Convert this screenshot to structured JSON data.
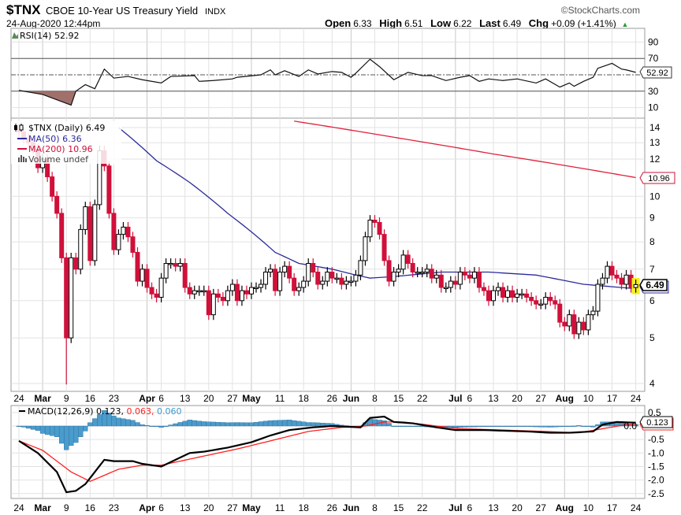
{
  "header": {
    "symbol": "$TNX",
    "name": "CBOE 10-Year US Treasury Yield",
    "exchange": "INDX",
    "datetime": "24-Aug-2020 12:44pm",
    "copyright": "©StockCharts.com",
    "open_label": "Open",
    "open": "6.33",
    "high_label": "High",
    "high": "6.51",
    "low_label": "Low",
    "low": "6.22",
    "last_label": "Last",
    "last": "6.49",
    "chg_label": "Chg",
    "chg": "+0.09 (+1.41%)",
    "chg_arrow": "▲"
  },
  "colors": {
    "up": "#000000",
    "down": "#d0103a",
    "ma50": "#2a2a9a",
    "ma200": "#e0203a",
    "rsi_fill": "#a0706a",
    "hist": "#4a9ccc",
    "signal": "#ff2020"
  },
  "chart_data": [
    {
      "type": "line",
      "title": "RSI(14) 52.92",
      "legend": "RSI(14) 52.92",
      "last_value": "52.92",
      "ylim": [
        0,
        100
      ],
      "ticks": [
        "90",
        "70",
        "30",
        "10"
      ],
      "tick_values": [
        90,
        70,
        30,
        10
      ],
      "overbought": 70,
      "oversold": 30,
      "midline": 50,
      "points": [
        [
          0,
          31
        ],
        [
          5,
          26
        ],
        [
          11,
          13
        ],
        [
          12,
          30
        ],
        [
          14,
          38
        ],
        [
          16,
          33
        ],
        [
          18,
          57
        ],
        [
          20,
          46
        ],
        [
          23,
          48
        ],
        [
          26,
          44
        ],
        [
          30,
          40
        ],
        [
          32,
          48
        ],
        [
          37,
          49
        ],
        [
          38,
          42
        ],
        [
          41,
          43
        ],
        [
          45,
          45
        ],
        [
          46,
          47
        ],
        [
          51,
          50
        ],
        [
          53,
          56
        ],
        [
          54,
          50
        ],
        [
          56,
          55
        ],
        [
          59,
          48
        ],
        [
          61,
          56
        ],
        [
          63,
          51
        ],
        [
          66,
          54
        ],
        [
          68,
          53
        ],
        [
          70,
          47
        ],
        [
          71,
          52
        ],
        [
          74,
          69
        ],
        [
          76,
          60
        ],
        [
          79,
          44
        ],
        [
          82,
          53
        ],
        [
          85,
          49
        ],
        [
          87,
          49
        ],
        [
          90,
          43
        ],
        [
          93,
          47
        ],
        [
          95,
          49
        ],
        [
          97,
          42
        ],
        [
          99,
          45
        ],
        [
          102,
          43
        ],
        [
          105,
          45
        ],
        [
          109,
          40
        ],
        [
          111,
          45
        ],
        [
          114,
          35
        ],
        [
          116,
          40
        ],
        [
          117,
          36
        ],
        [
          119,
          42
        ],
        [
          121,
          47
        ],
        [
          122,
          58
        ],
        [
          125,
          64
        ],
        [
          127,
          57
        ],
        [
          128,
          56
        ],
        [
          130,
          53
        ]
      ]
    },
    {
      "type": "candlestick",
      "title": "$TNX (Daily) 6.49",
      "legend": {
        "price": "$TNX (Daily) 6.49",
        "ma50": "MA(50) 6.36",
        "ma200": "MA(200) 10.96",
        "volume": "Volume undef"
      },
      "last_tag": "6.49",
      "ma200_tag": "10.96",
      "scale": "log",
      "ylim": [
        3.9,
        14.3
      ],
      "ticks": [
        "14",
        "13",
        "12",
        "10",
        "9",
        "8",
        "7",
        "6",
        "5",
        "4"
      ],
      "tick_values": [
        14,
        13,
        12,
        10,
        9,
        8,
        7,
        6,
        5,
        4
      ],
      "closes": [
        13.7,
        13.3,
        13.0,
        12.6,
        11.5,
        12.0,
        11.0,
        10.0,
        9.2,
        7.4,
        5.0,
        7.4,
        7.0,
        8.5,
        9.5,
        7.3,
        9.6,
        12.5,
        11.6,
        9.2,
        7.7,
        8.3,
        8.6,
        8.2,
        7.6,
        6.6,
        7.0,
        6.4,
        6.2,
        6.1,
        6.7,
        7.2,
        7.2,
        7.1,
        7.2,
        6.4,
        6.2,
        6.3,
        6.3,
        6.3,
        5.6,
        6.2,
        6.1,
        6.0,
        6.3,
        6.5,
        6.0,
        6.3,
        6.2,
        6.4,
        6.4,
        6.5,
        6.9,
        7.0,
        6.3,
        6.9,
        7.1,
        6.7,
        6.3,
        6.4,
        6.6,
        7.2,
        6.9,
        6.5,
        6.6,
        6.9,
        6.7,
        6.7,
        6.5,
        6.6,
        6.6,
        6.8,
        7.3,
        8.2,
        8.9,
        8.8,
        8.3,
        7.3,
        6.6,
        6.9,
        7.0,
        7.5,
        7.2,
        6.9,
        6.9,
        6.9,
        7.0,
        6.7,
        6.8,
        6.4,
        6.4,
        6.6,
        6.5,
        6.9,
        6.8,
        6.7,
        6.9,
        6.4,
        6.3,
        6.0,
        6.3,
        6.4,
        6.1,
        6.3,
        6.1,
        6.2,
        6.2,
        6.1,
        6.0,
        5.9,
        5.9,
        6.1,
        6.0,
        5.9,
        5.4,
        5.3,
        5.6,
        5.1,
        5.4,
        5.2,
        5.6,
        5.7,
        6.5,
        6.7,
        7.1,
        6.8,
        6.7,
        6.5,
        6.8,
        6.4,
        6.49
      ],
      "low_overrides": {
        "10": 3.98
      },
      "ma50": [
        [
          21,
          14.0
        ],
        [
          29,
          11.9
        ],
        [
          36,
          10.7
        ],
        [
          44,
          9.2
        ],
        [
          49,
          8.4
        ],
        [
          54,
          7.6
        ],
        [
          59,
          7.2
        ],
        [
          66,
          7.0
        ],
        [
          71,
          6.8
        ],
        [
          74,
          6.7
        ],
        [
          79,
          6.75
        ],
        [
          89,
          6.9
        ],
        [
          99,
          6.9
        ],
        [
          109,
          6.8
        ],
        [
          119,
          6.5
        ],
        [
          130,
          6.36
        ]
      ],
      "ma200": [
        [
          58,
          14.45
        ],
        [
          80,
          13.3
        ],
        [
          100,
          12.3
        ],
        [
          130,
          10.96
        ]
      ]
    },
    {
      "type": "line",
      "title": "MACD(12,26,9)",
      "legend": {
        "name": "MACD(12,26,9)",
        "macd": "0.123",
        "signal": "0.063",
        "hist": "0.060"
      },
      "last_tag": "0.123",
      "ylim": [
        -2.75,
        0.75
      ],
      "ticks": [
        "0.5",
        "0.0",
        "-0.5",
        "-1.0",
        "-1.5",
        "-2.0",
        "-2.5"
      ],
      "tick_values": [
        0.5,
        0,
        -0.5,
        -1,
        -1.5,
        -2,
        -2.5
      ],
      "macd": [
        [
          0,
          -0.55
        ],
        [
          4,
          -1.0
        ],
        [
          8,
          -1.7
        ],
        [
          10,
          -2.45
        ],
        [
          12,
          -2.4
        ],
        [
          14,
          -2.15
        ],
        [
          16,
          -1.7
        ],
        [
          18,
          -1.25
        ],
        [
          20,
          -1.3
        ],
        [
          24,
          -1.3
        ],
        [
          26,
          -1.4
        ],
        [
          30,
          -1.5
        ],
        [
          33,
          -1.25
        ],
        [
          36,
          -1.0
        ],
        [
          39,
          -0.95
        ],
        [
          44,
          -0.8
        ],
        [
          49,
          -0.6
        ],
        [
          53,
          -0.35
        ],
        [
          57,
          -0.15
        ],
        [
          62,
          -0.05
        ],
        [
          66,
          0.0
        ],
        [
          72,
          -0.05
        ],
        [
          74,
          0.3
        ],
        [
          77,
          0.35
        ],
        [
          79,
          0.15
        ],
        [
          83,
          0.1
        ],
        [
          88,
          -0.05
        ],
        [
          92,
          -0.15
        ],
        [
          98,
          -0.15
        ],
        [
          107,
          -0.2
        ],
        [
          112,
          -0.25
        ],
        [
          116,
          -0.25
        ],
        [
          121,
          -0.2
        ],
        [
          123,
          0.05
        ],
        [
          126,
          0.15
        ],
        [
          129,
          0.13
        ],
        [
          130,
          0.123
        ]
      ],
      "signal": [
        [
          0,
          -0.55
        ],
        [
          5,
          -0.9
        ],
        [
          11,
          -1.7
        ],
        [
          15,
          -2.05
        ],
        [
          17,
          -1.9
        ],
        [
          21,
          -1.6
        ],
        [
          26,
          -1.45
        ],
        [
          30,
          -1.45
        ],
        [
          38,
          -1.15
        ],
        [
          46,
          -0.85
        ],
        [
          53,
          -0.55
        ],
        [
          61,
          -0.2
        ],
        [
          68,
          -0.05
        ],
        [
          73,
          0.0
        ],
        [
          77,
          0.15
        ],
        [
          81,
          0.15
        ],
        [
          88,
          0.0
        ],
        [
          93,
          -0.1
        ],
        [
          102,
          -0.15
        ],
        [
          111,
          -0.2
        ],
        [
          118,
          -0.25
        ],
        [
          123,
          -0.1
        ],
        [
          128,
          0.05
        ],
        [
          130,
          0.063
        ]
      ]
    }
  ],
  "x_axis": [
    {
      "label": "24",
      "i": 0
    },
    {
      "label": "Mar",
      "i": 5,
      "bold": true
    },
    {
      "label": "9",
      "i": 10
    },
    {
      "label": "16",
      "i": 15
    },
    {
      "label": "23",
      "i": 20
    },
    {
      "label": "Apr",
      "i": 27,
      "bold": true
    },
    {
      "label": "6",
      "i": 30
    },
    {
      "label": "13",
      "i": 35
    },
    {
      "label": "20",
      "i": 40
    },
    {
      "label": "27",
      "i": 45
    },
    {
      "label": "May",
      "i": 49,
      "bold": true
    },
    {
      "label": "11",
      "i": 55
    },
    {
      "label": "18",
      "i": 60
    },
    {
      "label": "26",
      "i": 66
    },
    {
      "label": "Jun",
      "i": 70,
      "bold": true
    },
    {
      "label": "8",
      "i": 75
    },
    {
      "label": "15",
      "i": 80
    },
    {
      "label": "22",
      "i": 85
    },
    {
      "label": "Jul",
      "i": 92,
      "bold": true
    },
    {
      "label": "6",
      "i": 95
    },
    {
      "label": "13",
      "i": 100
    },
    {
      "label": "20",
      "i": 105
    },
    {
      "label": "27",
      "i": 110
    },
    {
      "label": "Aug",
      "i": 115,
      "bold": true
    },
    {
      "label": "10",
      "i": 120
    },
    {
      "label": "17",
      "i": 125
    },
    {
      "label": "24",
      "i": 130
    }
  ]
}
